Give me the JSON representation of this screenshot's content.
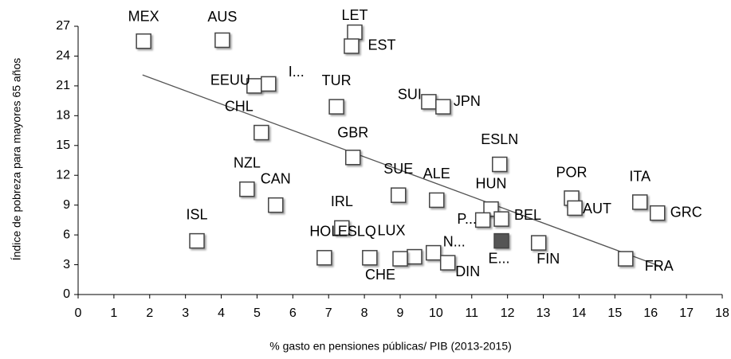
{
  "chart_data": {
    "type": "scatter",
    "xlabel": "% gasto en pensiones públicas/ PIB (2013-2015)",
    "ylabel": "Índice de  pobreza para mayores 65 años",
    "xlim": [
      0,
      18
    ],
    "xticks": [
      0,
      1,
      2,
      3,
      4,
      5,
      6,
      7,
      8,
      9,
      10,
      11,
      12,
      13,
      14,
      15,
      16,
      17,
      18
    ],
    "ylim": [
      0,
      27
    ],
    "yticks": [
      0,
      3,
      6,
      9,
      12,
      15,
      18,
      21,
      24,
      27
    ],
    "grid": false,
    "trendline": {
      "x": [
        1.8,
        16.3
      ],
      "y": [
        22.1,
        2.8
      ],
      "color": "#555555"
    },
    "series": [
      {
        "name": null,
        "color": "#ffffff",
        "highlight_color": "#555555",
        "labels": [
          "MEX",
          "AUS",
          "LET",
          "EST",
          "EEUU",
          "I...",
          "TUR",
          "SUI",
          "JPN",
          "CHL",
          "GBR",
          "ESLN",
          "NZL",
          "CAN",
          "SUE",
          "ALE",
          "HUN",
          "POR",
          "AUT",
          "ITA",
          "GRC",
          "P...",
          "BEL",
          "IRL",
          "ISL",
          "FIN",
          "E...",
          "HOL",
          "ESLQ",
          "LUX",
          "CHE",
          "N...",
          "DIN",
          "FRA"
        ],
        "x": [
          1.83,
          4.03,
          7.73,
          7.64,
          4.92,
          5.32,
          7.22,
          9.8,
          10.2,
          5.12,
          7.68,
          11.78,
          4.72,
          5.52,
          8.95,
          10.02,
          11.54,
          13.79,
          13.88,
          15.7,
          16.19,
          11.31,
          11.83,
          7.37,
          3.32,
          12.87,
          11.83,
          6.88,
          8.15,
          9.4,
          9.0,
          9.93,
          10.33,
          15.3
        ],
        "values": [
          25.5,
          25.6,
          26.4,
          25.0,
          21.0,
          21.2,
          18.9,
          19.4,
          18.9,
          16.3,
          13.8,
          13.1,
          10.6,
          9.0,
          10.0,
          9.5,
          8.6,
          9.7,
          8.7,
          9.3,
          8.2,
          7.5,
          7.6,
          6.7,
          5.4,
          5.2,
          5.4,
          3.7,
          3.7,
          3.8,
          3.6,
          4.2,
          3.2,
          3.6
        ],
        "highlight": [
          26
        ]
      }
    ]
  }
}
